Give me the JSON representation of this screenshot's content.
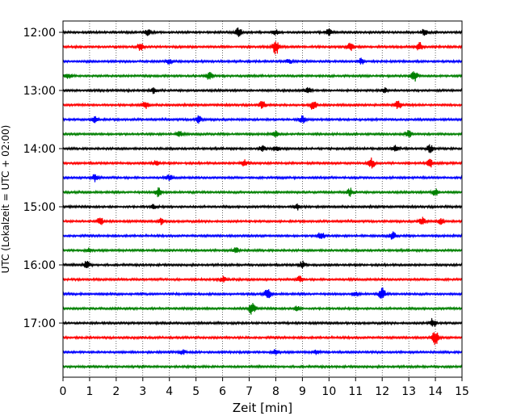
{
  "chart_data": {
    "type": "line",
    "title": "",
    "xlabel": "Zeit  [min]",
    "ylabel": "UTC (Lokalzeit = UTC + 02:00)",
    "xlim": [
      0,
      15
    ],
    "x_ticks": [
      0,
      1,
      2,
      3,
      4,
      5,
      6,
      7,
      8,
      9,
      10,
      11,
      12,
      13,
      14,
      15
    ],
    "y_ticks": [
      "12:00",
      "13:00",
      "14:00",
      "15:00",
      "16:00",
      "17:00"
    ],
    "grid": "vertical dotted",
    "trace_interval_minutes": 15,
    "trace_colors": [
      "#000000",
      "#ff0000",
      "#0000ff",
      "#008000"
    ],
    "traces": [
      {
        "start": "12:00",
        "color": "#000000",
        "events": [
          [
            3.2,
            0.4
          ],
          [
            6.6,
            0.6
          ],
          [
            8.0,
            0.35
          ],
          [
            10.0,
            0.45
          ],
          [
            13.6,
            0.5
          ]
        ]
      },
      {
        "start": "12:15",
        "color": "#ff0000",
        "events": [
          [
            2.9,
            0.5
          ],
          [
            8.0,
            1.0
          ],
          [
            10.8,
            0.5
          ],
          [
            13.4,
            0.6
          ]
        ]
      },
      {
        "start": "12:30",
        "color": "#0000ff",
        "events": [
          [
            4.0,
            0.4
          ],
          [
            8.5,
            0.3
          ],
          [
            11.2,
            0.4
          ]
        ]
      },
      {
        "start": "12:45",
        "color": "#008000",
        "events": [
          [
            0.2,
            0.4
          ],
          [
            5.5,
            0.5
          ],
          [
            13.2,
            0.8
          ]
        ]
      },
      {
        "start": "13:00",
        "color": "#000000",
        "events": [
          [
            3.4,
            0.4
          ],
          [
            9.2,
            0.4
          ],
          [
            12.1,
            0.3
          ]
        ]
      },
      {
        "start": "13:15",
        "color": "#ff0000",
        "events": [
          [
            3.1,
            0.5
          ],
          [
            7.5,
            0.5
          ],
          [
            9.4,
            0.6
          ],
          [
            12.6,
            0.6
          ]
        ]
      },
      {
        "start": "13:30",
        "color": "#0000ff",
        "events": [
          [
            1.2,
            0.4
          ],
          [
            5.1,
            0.5
          ],
          [
            9.0,
            0.5
          ]
        ]
      },
      {
        "start": "13:45",
        "color": "#008000",
        "events": [
          [
            4.4,
            0.4
          ],
          [
            8.0,
            0.35
          ],
          [
            13.0,
            0.5
          ]
        ]
      },
      {
        "start": "14:00",
        "color": "#000000",
        "events": [
          [
            7.5,
            0.4
          ],
          [
            8.0,
            0.4
          ],
          [
            12.5,
            0.4
          ],
          [
            13.8,
            0.5
          ]
        ]
      },
      {
        "start": "14:15",
        "color": "#ff0000",
        "events": [
          [
            3.5,
            0.4
          ],
          [
            6.8,
            0.5
          ],
          [
            11.6,
            0.7
          ],
          [
            13.8,
            0.5
          ]
        ]
      },
      {
        "start": "14:30",
        "color": "#0000ff",
        "events": [
          [
            1.2,
            0.5
          ],
          [
            4.0,
            0.4
          ]
        ]
      },
      {
        "start": "14:45",
        "color": "#008000",
        "events": [
          [
            3.6,
            0.7
          ],
          [
            10.8,
            0.5
          ],
          [
            14.0,
            0.5
          ]
        ]
      },
      {
        "start": "15:00",
        "color": "#000000",
        "events": [
          [
            3.4,
            0.3
          ],
          [
            8.8,
            0.4
          ]
        ]
      },
      {
        "start": "15:15",
        "color": "#ff0000",
        "events": [
          [
            1.4,
            0.5
          ],
          [
            3.7,
            0.4
          ],
          [
            13.5,
            0.6
          ],
          [
            14.2,
            0.4
          ]
        ]
      },
      {
        "start": "15:30",
        "color": "#0000ff",
        "events": [
          [
            9.7,
            0.6
          ],
          [
            12.4,
            0.5
          ]
        ]
      },
      {
        "start": "15:45",
        "color": "#008000",
        "events": [
          [
            1.0,
            0.3
          ],
          [
            6.5,
            0.4
          ]
        ]
      },
      {
        "start": "16:00",
        "color": "#000000",
        "events": [
          [
            0.9,
            0.5
          ],
          [
            9.0,
            0.5
          ]
        ]
      },
      {
        "start": "16:15",
        "color": "#ff0000",
        "events": [
          [
            6.0,
            0.4
          ],
          [
            8.9,
            0.4
          ]
        ]
      },
      {
        "start": "16:30",
        "color": "#0000ff",
        "events": [
          [
            7.7,
            0.7
          ],
          [
            11.0,
            0.3
          ],
          [
            12.0,
            0.8
          ]
        ]
      },
      {
        "start": "16:45",
        "color": "#008000",
        "events": [
          [
            7.1,
            0.8
          ],
          [
            8.8,
            0.3
          ]
        ]
      },
      {
        "start": "17:00",
        "color": "#000000",
        "events": [
          [
            13.9,
            0.6
          ]
        ]
      },
      {
        "start": "17:15",
        "color": "#ff0000",
        "events": [
          [
            14.0,
            1.0
          ]
        ]
      },
      {
        "start": "17:30",
        "color": "#0000ff",
        "events": [
          [
            4.5,
            0.3
          ],
          [
            8.0,
            0.4
          ],
          [
            9.5,
            0.3
          ]
        ]
      },
      {
        "start": "17:45",
        "color": "#008000",
        "events": []
      }
    ]
  }
}
